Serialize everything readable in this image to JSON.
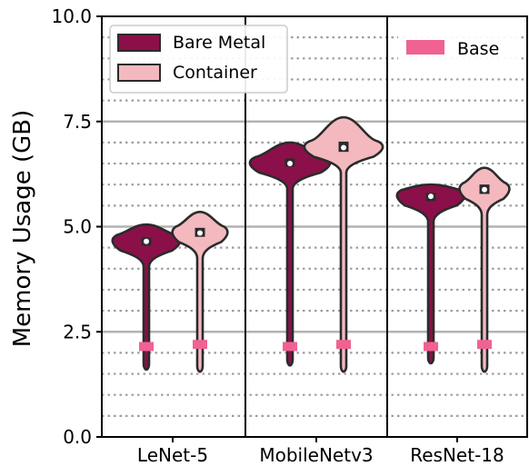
{
  "chart_data": {
    "type": "violin",
    "title": "",
    "xlabel": "",
    "ylabel": "Memory Usage (GB)",
    "ylim": [
      0,
      10
    ],
    "yticks": [
      "0.0",
      "2.5",
      "5.0",
      "7.5",
      "10.0"
    ],
    "major_grid": [
      2.5,
      5.0,
      7.5
    ],
    "minor_grid_dotted": [
      0.5,
      1.0,
      1.5,
      2.0,
      3.0,
      3.5,
      4.0,
      4.5,
      5.5,
      6.0,
      6.5,
      7.0,
      8.0,
      8.5,
      9.0,
      9.5
    ],
    "categories": [
      "LeNet-5",
      "MobileNetv3",
      "ResNet-18"
    ],
    "series": [
      {
        "name": "Bare Metal",
        "color": "#8B1049",
        "violins": [
          {
            "category": "LeNet-5",
            "min": 1.6,
            "max": 5.05,
            "median": 4.65,
            "q1": 4.6,
            "q3": 4.72
          },
          {
            "category": "MobileNetv3",
            "min": 1.7,
            "max": 7.0,
            "median": 6.5,
            "q1": 6.45,
            "q3": 6.6
          },
          {
            "category": "ResNet-18",
            "min": 1.75,
            "max": 6.0,
            "median": 5.72,
            "q1": 5.68,
            "q3": 5.78
          }
        ]
      },
      {
        "name": "Container",
        "color": "#F4B9BF",
        "violins": [
          {
            "category": "LeNet-5",
            "min": 1.55,
            "max": 5.35,
            "median": 4.85,
            "q1": 4.78,
            "q3": 4.95
          },
          {
            "category": "MobileNetv3",
            "min": 1.55,
            "max": 7.6,
            "median": 6.88,
            "q1": 6.8,
            "q3": 7.0
          },
          {
            "category": "ResNet-18",
            "min": 1.55,
            "max": 6.4,
            "median": 5.88,
            "q1": 5.8,
            "q3": 5.98
          }
        ]
      }
    ],
    "base": {
      "name": "Base",
      "color": "#F06292",
      "values": [
        {
          "category": "LeNet-5",
          "bare_metal": 2.15,
          "container": 2.2
        },
        {
          "category": "MobileNetv3",
          "bare_metal": 2.15,
          "container": 2.2
        },
        {
          "category": "ResNet-18",
          "bare_metal": 2.15,
          "container": 2.2
        }
      ]
    },
    "legend": {
      "main": {
        "placement": "top-left",
        "entries": [
          "Bare Metal",
          "Container"
        ]
      },
      "secondary": {
        "placement": "top-right",
        "entries": [
          "Base"
        ]
      }
    }
  }
}
